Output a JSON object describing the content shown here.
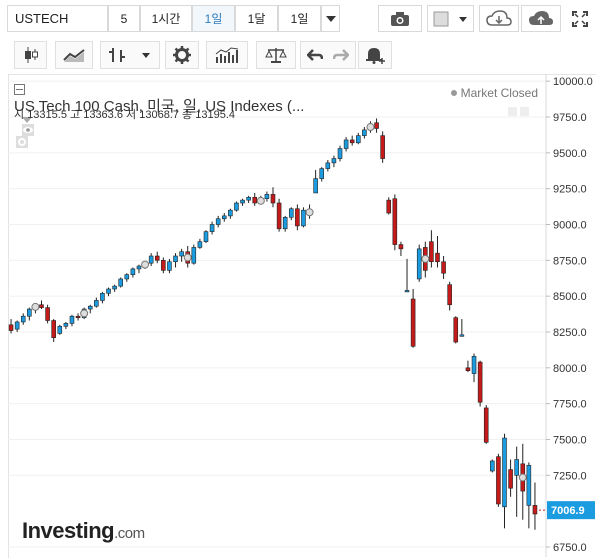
{
  "toolbar": {
    "symbol": "USTECH",
    "intervals": [
      "5",
      "1시간",
      "1일",
      "1달",
      "1일"
    ],
    "active_interval_index": 2,
    "icons": [
      "camera-icon",
      "color-square-icon",
      "cloud-download-icon",
      "cloud-upload-icon",
      "fullscreen-icon"
    ]
  },
  "toolbar2": {
    "icons": [
      "candlestick-icon",
      "line-chart-icon",
      "bar-type-icon",
      "settings-icon",
      "indicators-icon",
      "compare-icon",
      "undo-icon",
      "redo-icon",
      "alert-icon"
    ]
  },
  "legend": {
    "title": "US Tech 100 Cash, 미국, 일, US Indexes (...",
    "open_label": "시",
    "open": "13315.5",
    "high_label": "고",
    "high": "13363.6",
    "low_label": "저",
    "low": "13068.7",
    "close_label": "종",
    "close": "13195.4"
  },
  "market_status": "Market Closed",
  "brand": {
    "name": "Investing",
    "suffix": ".com"
  },
  "colors": {
    "up": "#1c9ce0",
    "down": "#c41a1a",
    "price_tag": "#1c9ce0"
  },
  "chart_data": {
    "type": "candlestick",
    "y_axis_ticks": [
      "10000.0",
      "9750.0",
      "9500.0",
      "9250.0",
      "9000.0",
      "8750.0",
      "8500.0",
      "8250.0",
      "8000.0",
      "7750.0",
      "7500.0",
      "7250.0",
      "7006.9",
      "6750.0"
    ],
    "ylim": [
      6680,
      10050
    ],
    "last_price_label": "7006.9",
    "last_price": 7006.9,
    "ohlc": [
      [
        8300,
        8340,
        8240,
        8260
      ],
      [
        8270,
        8330,
        8250,
        8320
      ],
      [
        8320,
        8380,
        8300,
        8360
      ],
      [
        8360,
        8420,
        8330,
        8410
      ],
      [
        8410,
        8450,
        8380,
        8440
      ],
      [
        8440,
        8470,
        8410,
        8420
      ],
      [
        8420,
        8440,
        8310,
        8330
      ],
      [
        8330,
        8340,
        8180,
        8210
      ],
      [
        8240,
        8300,
        8230,
        8290
      ],
      [
        8290,
        8320,
        8270,
        8310
      ],
      [
        8310,
        8370,
        8290,
        8360
      ],
      [
        8360,
        8380,
        8330,
        8350
      ],
      [
        8350,
        8420,
        8340,
        8410
      ],
      [
        8410,
        8440,
        8380,
        8430
      ],
      [
        8430,
        8490,
        8420,
        8470
      ],
      [
        8470,
        8530,
        8450,
        8520
      ],
      [
        8520,
        8560,
        8500,
        8550
      ],
      [
        8550,
        8580,
        8530,
        8570
      ],
      [
        8570,
        8630,
        8560,
        8620
      ],
      [
        8620,
        8660,
        8600,
        8650
      ],
      [
        8650,
        8700,
        8630,
        8690
      ],
      [
        8690,
        8720,
        8660,
        8710
      ],
      [
        8710,
        8740,
        8690,
        8730
      ],
      [
        8730,
        8800,
        8710,
        8780
      ],
      [
        8780,
        8810,
        8730,
        8750
      ],
      [
        8750,
        8770,
        8660,
        8680
      ],
      [
        8680,
        8760,
        8660,
        8740
      ],
      [
        8740,
        8800,
        8700,
        8780
      ],
      [
        8780,
        8830,
        8740,
        8810
      ],
      [
        8810,
        8850,
        8700,
        8730
      ],
      [
        8730,
        8860,
        8720,
        8840
      ],
      [
        8840,
        8900,
        8830,
        8880
      ],
      [
        8880,
        8960,
        8870,
        8950
      ],
      [
        8950,
        9020,
        8930,
        9000
      ],
      [
        9000,
        9060,
        8980,
        9040
      ],
      [
        9040,
        9080,
        9020,
        9060
      ],
      [
        9060,
        9110,
        9040,
        9100
      ],
      [
        9100,
        9160,
        9090,
        9150
      ],
      [
        9150,
        9180,
        9130,
        9170
      ],
      [
        9170,
        9200,
        9150,
        9190
      ],
      [
        9190,
        9220,
        9130,
        9150
      ],
      [
        9150,
        9200,
        9140,
        9180
      ],
      [
        9180,
        9230,
        9160,
        9210
      ],
      [
        9210,
        9260,
        9120,
        9150
      ],
      [
        9150,
        9180,
        8950,
        8970
      ],
      [
        8970,
        9060,
        8950,
        9050
      ],
      [
        9050,
        9120,
        9030,
        9110
      ],
      [
        9110,
        9140,
        8960,
        8990
      ],
      [
        8990,
        9120,
        8980,
        9100
      ],
      [
        9100,
        9140,
        9040,
        9070
      ],
      [
        9220,
        9380,
        9220,
        9320
      ],
      [
        9320,
        9400,
        9300,
        9390
      ],
      [
        9390,
        9450,
        9370,
        9430
      ],
      [
        9430,
        9480,
        9400,
        9460
      ],
      [
        9460,
        9550,
        9440,
        9530
      ],
      [
        9530,
        9610,
        9510,
        9590
      ],
      [
        9590,
        9620,
        9550,
        9570
      ],
      [
        9570,
        9640,
        9560,
        9620
      ],
      [
        9620,
        9680,
        9600,
        9660
      ],
      [
        9660,
        9720,
        9640,
        9700
      ],
      [
        9710,
        9740,
        9640,
        9670
      ],
      [
        9620,
        9650,
        9430,
        9460
      ],
      [
        9170,
        9190,
        9070,
        9080
      ],
      [
        9180,
        9210,
        8820,
        8860
      ],
      [
        8860,
        8880,
        8780,
        8830
      ],
      [
        8540,
        8760,
        8530,
        8540
      ],
      [
        8480,
        8550,
        8140,
        8150
      ],
      [
        8620,
        8860,
        8600,
        8830
      ],
      [
        8840,
        8880,
        8630,
        8680
      ],
      [
        8880,
        8960,
        8700,
        8740
      ],
      [
        8800,
        8920,
        8700,
        8740
      ],
      [
        8740,
        8780,
        8620,
        8660
      ],
      [
        8580,
        8600,
        8400,
        8440
      ],
      [
        8350,
        8360,
        8170,
        8180
      ],
      [
        8220,
        8340,
        8220,
        8230
      ],
      [
        8000,
        8050,
        7970,
        7980
      ],
      [
        7960,
        8100,
        7900,
        8080
      ],
      [
        8040,
        8050,
        7730,
        7760
      ],
      [
        7720,
        7740,
        7470,
        7480
      ],
      [
        7280,
        7360,
        7270,
        7350
      ],
      [
        7380,
        7400,
        7030,
        7050
      ],
      [
        7030,
        7540,
        6880,
        7510
      ],
      [
        7290,
        7360,
        7100,
        7160
      ],
      [
        7250,
        7450,
        6960,
        7360
      ],
      [
        7330,
        7470,
        6940,
        7140
      ],
      [
        7040,
        7340,
        6880,
        7320
      ],
      [
        7040,
        7200,
        6870,
        6980
      ]
    ],
    "markers_at_index": [
      4,
      12,
      22,
      29,
      41,
      49,
      59,
      68,
      84
    ]
  }
}
